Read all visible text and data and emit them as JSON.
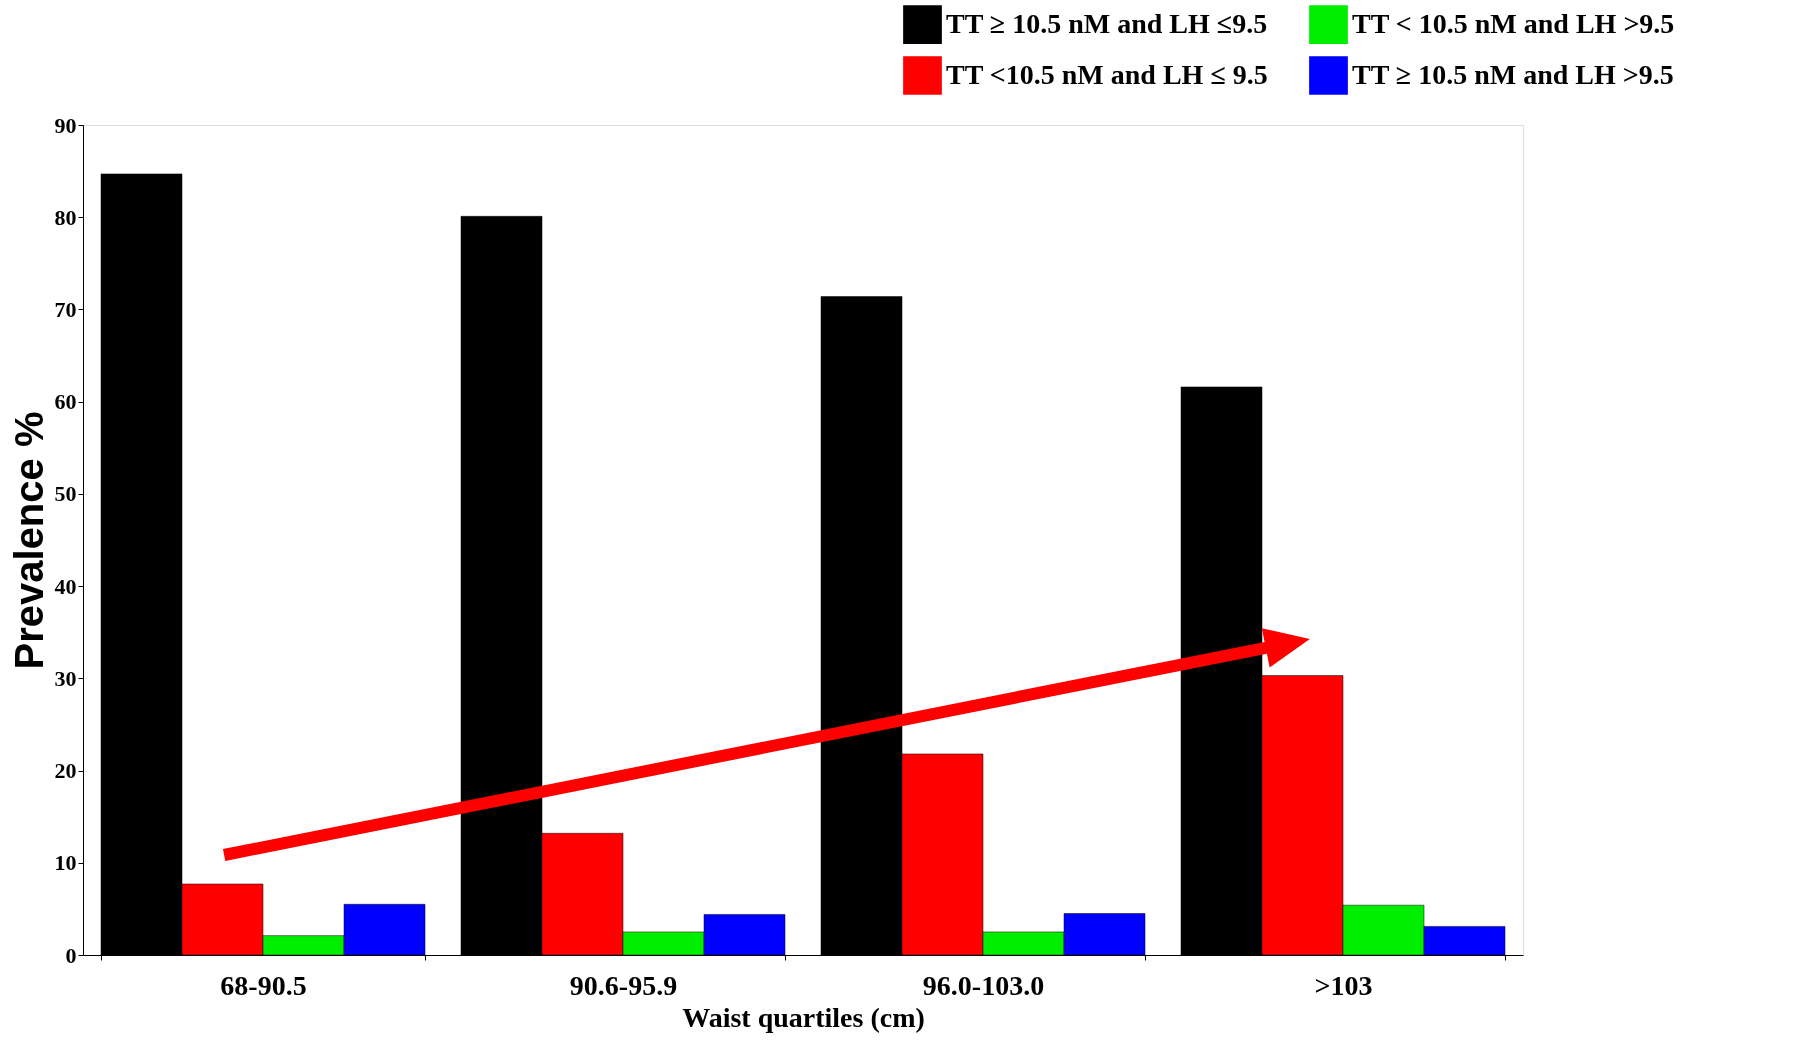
{
  "chart_data": {
    "type": "bar",
    "xlabel": "Waist quartiles (cm)",
    "ylabel": "Prevalence %",
    "categories": [
      "68-90.5",
      "90.6-95.9",
      "96.0-103.0",
      ">103"
    ],
    "series": [
      {
        "name": "TT ≥ 10.5 nM and LH ≤9.5",
        "color": "#000000",
        "values": [
          84.7,
          80.1,
          71.4,
          61.6
        ]
      },
      {
        "name": "TT <10.5 nM and LH ≤ 9.5",
        "color": "#ff0000",
        "values": [
          7.7,
          13.2,
          21.8,
          30.3
        ]
      },
      {
        "name": "TT < 10.5 nM and LH >9.5",
        "color": "#00ee00",
        "values": [
          2.1,
          2.5,
          2.5,
          5.4
        ]
      },
      {
        "name": "TT ≥ 10.5 nM and LH >9.5",
        "color": "#0000ff",
        "values": [
          5.5,
          4.4,
          4.5,
          3.1
        ]
      }
    ],
    "ylim": [
      0,
      90
    ],
    "yticks": [
      0,
      10,
      20,
      30,
      40,
      50,
      60,
      70,
      80,
      90
    ],
    "grid": false,
    "legend": "top right"
  }
}
